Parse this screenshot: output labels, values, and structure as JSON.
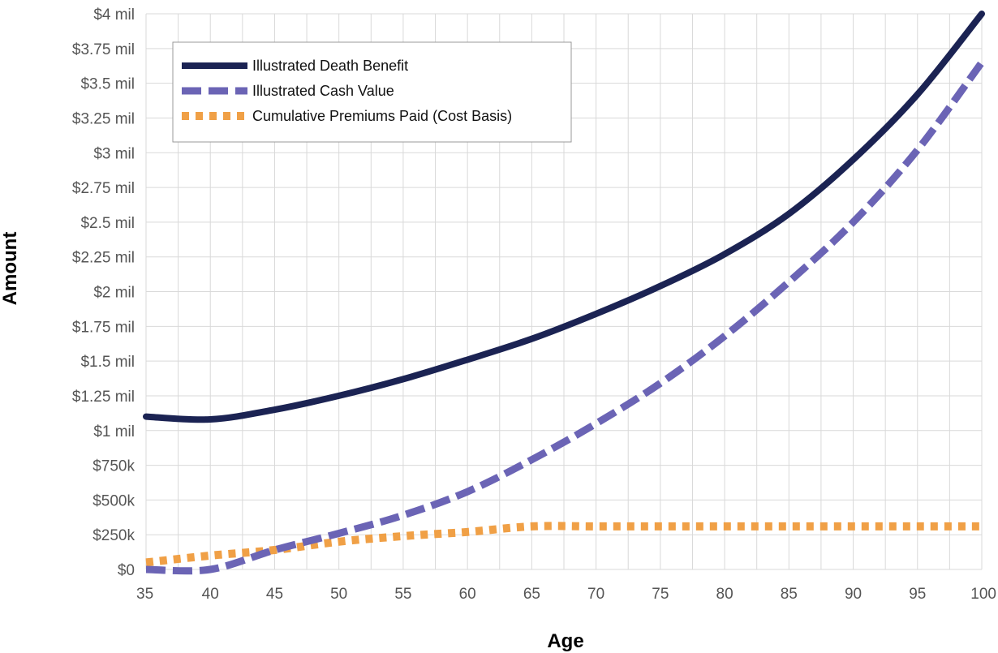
{
  "chart_data": {
    "type": "line",
    "xlabel": "Age",
    "ylabel": "Amount",
    "xlim": [
      35,
      100
    ],
    "ylim": [
      0,
      4000000
    ],
    "x_ticks": [
      35,
      40,
      45,
      50,
      55,
      60,
      65,
      70,
      75,
      80,
      85,
      90,
      95,
      100
    ],
    "x_tick_labels": [
      "35",
      "40",
      "45",
      "50",
      "55",
      "60",
      "65",
      "70",
      "75",
      "80",
      "85",
      "90",
      "95",
      "100"
    ],
    "y_ticks": [
      0,
      250000,
      500000,
      750000,
      1000000,
      1250000,
      1500000,
      1750000,
      2000000,
      2250000,
      2500000,
      2750000,
      3000000,
      3250000,
      3500000,
      3750000,
      4000000
    ],
    "y_tick_labels": [
      "$0",
      "$250k",
      "$500k",
      "$750k",
      "$1 mil",
      "$1.25 mil",
      "$1.5 mil",
      "$1.75 mil",
      "$2 mil",
      "$2.25 mil",
      "$2.5 mil",
      "$2.75 mil",
      "$3 mil",
      "$3.25 mil",
      "$3.5 mil",
      "$3.75 mil",
      "$4 mil"
    ],
    "grid": true,
    "legend_position": "top-left",
    "x": [
      35,
      40,
      45,
      50,
      55,
      60,
      65,
      70,
      75,
      80,
      85,
      90,
      95,
      100
    ],
    "series": [
      {
        "name": "Illustrated Death Benefit",
        "style": "solid",
        "color": "#1b2353",
        "values": [
          1100000,
          1080000,
          1150000,
          1250000,
          1370000,
          1510000,
          1660000,
          1840000,
          2040000,
          2270000,
          2560000,
          2950000,
          3420000,
          4000000
        ]
      },
      {
        "name": "Illustrated Cash Value",
        "style": "dashed",
        "color": "#6b64b5",
        "values": [
          0,
          0,
          140000,
          260000,
          390000,
          560000,
          790000,
          1050000,
          1340000,
          1680000,
          2070000,
          2500000,
          3020000,
          3650000
        ]
      },
      {
        "name": "Cumulative Premiums Paid (Cost Basis)",
        "style": "dotted",
        "color": "#f0a046",
        "values": [
          50000,
          100000,
          140000,
          200000,
          240000,
          270000,
          310000,
          310000,
          310000,
          310000,
          310000,
          310000,
          310000,
          310000
        ]
      }
    ]
  }
}
